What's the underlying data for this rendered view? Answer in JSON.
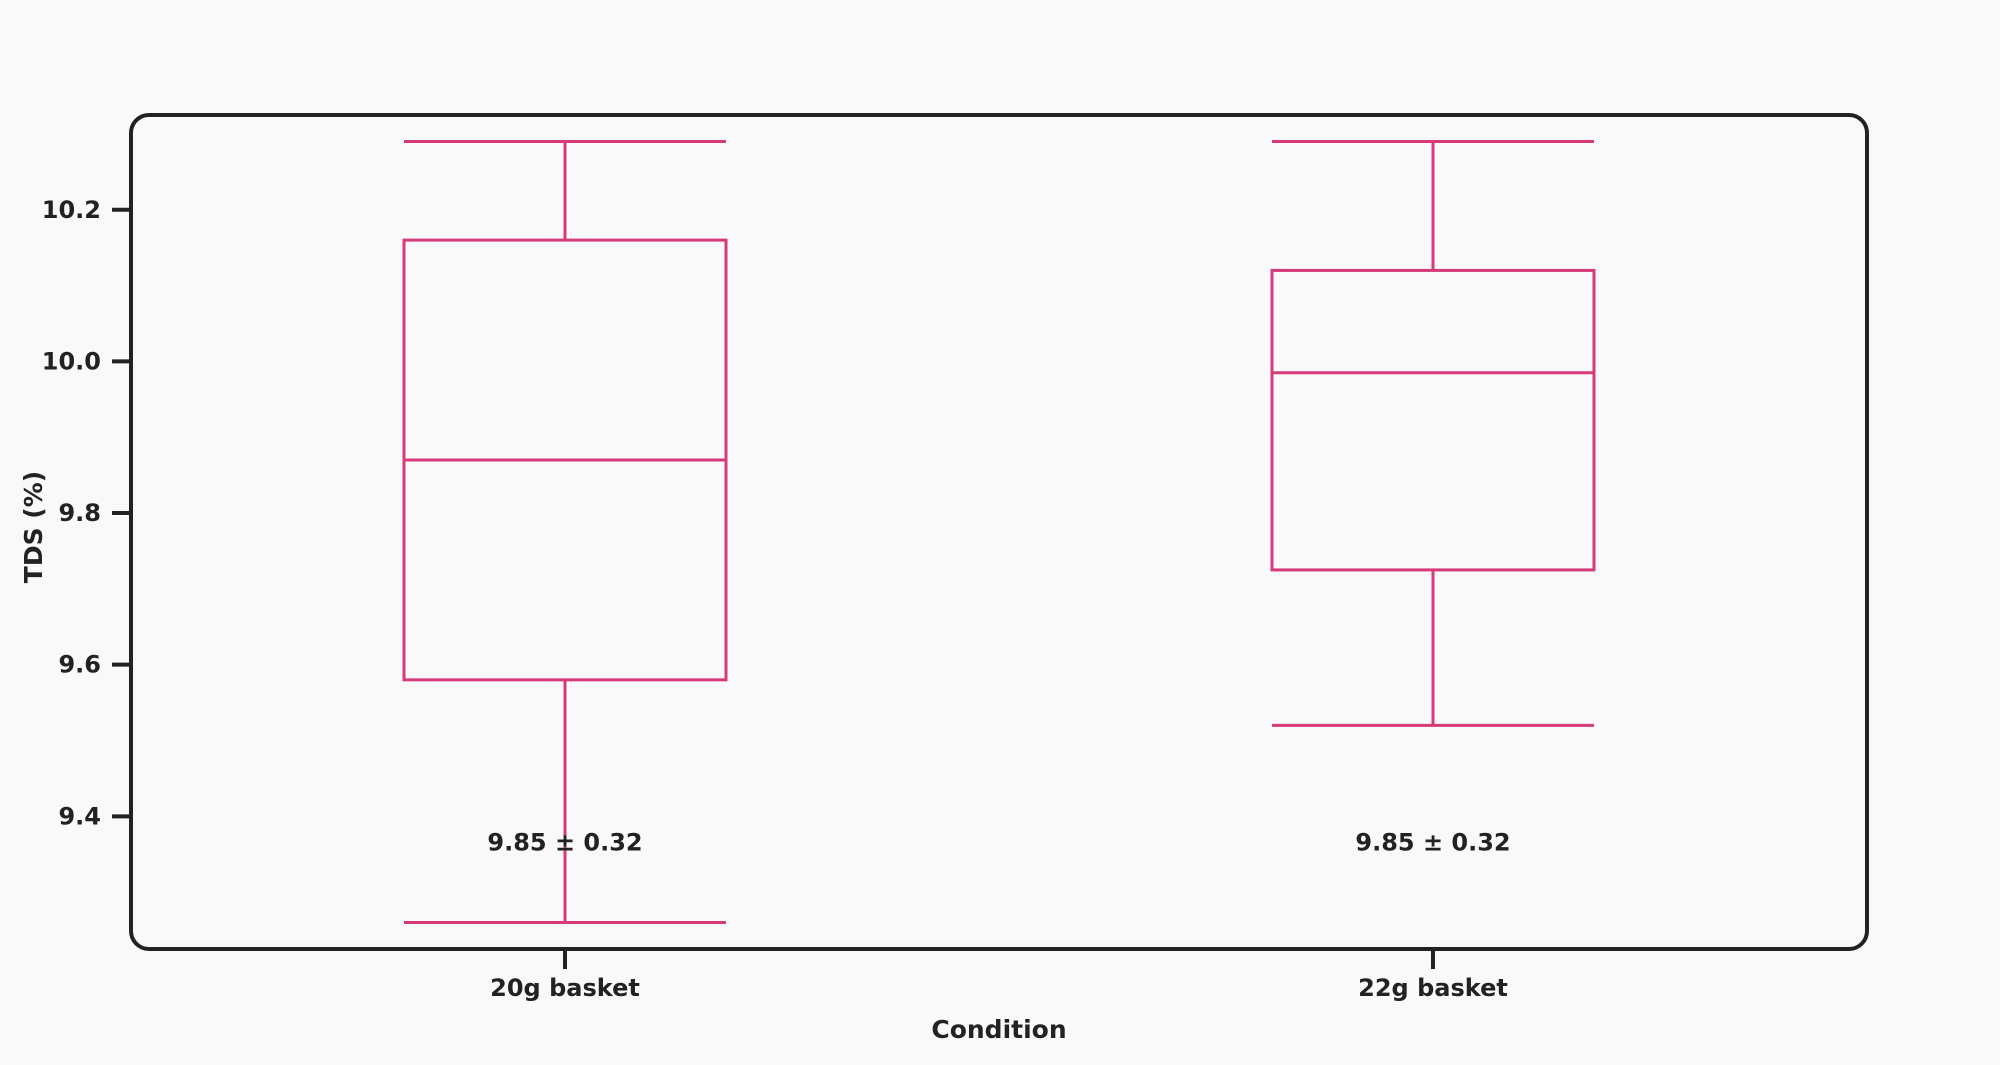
{
  "colors": {
    "box": "#d63a7a",
    "axis": "#222222",
    "background": "#f9f9f9"
  },
  "chart_data": {
    "type": "box",
    "xlabel": "Condition",
    "ylabel": "TDS (%)",
    "ylim": [
      9.225,
      10.325
    ],
    "yticks": [
      "9.4",
      "9.6",
      "9.8",
      "10.0",
      "10.2"
    ],
    "categories": [
      "20g basket",
      "22g basket"
    ],
    "boxes": [
      {
        "category": "20g basket",
        "whisker_low": 9.26,
        "q1": 9.58,
        "median": 9.87,
        "q3": 10.16,
        "whisker_high": 10.29,
        "annotation": "9.85 ± 0.32"
      },
      {
        "category": "22g basket",
        "whisker_low": 9.52,
        "q1": 9.725,
        "median": 9.985,
        "q3": 10.12,
        "whisker_high": 10.29,
        "annotation": "9.85 ± 0.32"
      }
    ],
    "grid": false,
    "legend": "none"
  }
}
